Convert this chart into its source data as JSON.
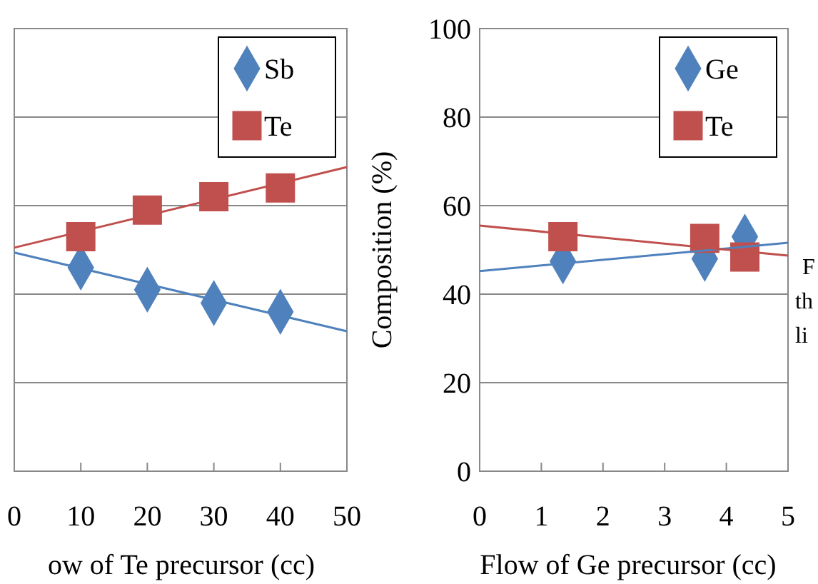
{
  "chart_data": [
    {
      "type": "scatter",
      "xlabel": "ow of Te precursor  (cc)",
      "xlim": [
        0,
        50
      ],
      "xticks": [
        0,
        10,
        20,
        30,
        40,
        50
      ],
      "ylim": [
        0,
        100
      ],
      "yticks": [
        0,
        20,
        40,
        60,
        80,
        100
      ],
      "tick_labels": "x",
      "grid": "y",
      "legend": "top right",
      "series": [
        {
          "name": "Sb",
          "color": "#4f81bd",
          "marker": "diamond",
          "x": [
            10,
            20,
            30,
            40
          ],
          "values": [
            46,
            41,
            38,
            36
          ]
        },
        {
          "name": "Te",
          "color": "#c0504d",
          "marker": "square",
          "x": [
            10,
            20,
            30,
            40
          ],
          "values": [
            53,
            59,
            62,
            64
          ]
        },
        {
          "type": "line",
          "color": "#4f81bd",
          "marker": "none",
          "x": [
            0,
            50
          ],
          "values": [
            49.4,
            31.6
          ]
        },
        {
          "type": "line",
          "color": "#c0504d",
          "marker": "none",
          "x": [
            0,
            50
          ],
          "values": [
            50.5,
            68.7
          ]
        }
      ]
    },
    {
      "type": "scatter",
      "xlabel": "Flow of Ge precursor (cc)",
      "ylabel": "Composition (%)",
      "xlim": [
        0,
        5
      ],
      "xticks": [
        0,
        1,
        2,
        3,
        4,
        5
      ],
      "ylim": [
        0,
        100
      ],
      "yticks": [
        0,
        20,
        40,
        60,
        80,
        100
      ],
      "grid": "y",
      "legend": "top right",
      "annotations": [
        "F",
        "th",
        "li"
      ],
      "series": [
        {
          "name": "Ge",
          "color": "#4f81bd",
          "marker": "diamond",
          "x": [
            1.35,
            3.65,
            4.3
          ],
          "values": [
            47.4,
            48,
            53
          ]
        },
        {
          "name": "Te",
          "color": "#c0504d",
          "marker": "square",
          "x": [
            1.35,
            3.65,
            4.3
          ],
          "values": [
            53,
            52.6,
            48.4
          ]
        },
        {
          "type": "line",
          "color": "#4f81bd",
          "marker": "none",
          "x": [
            0,
            5
          ],
          "values": [
            45.2,
            51.6
          ]
        },
        {
          "type": "line",
          "color": "#c0504d",
          "marker": "none",
          "x": [
            0,
            5
          ],
          "values": [
            55.5,
            48.7
          ]
        }
      ]
    }
  ]
}
